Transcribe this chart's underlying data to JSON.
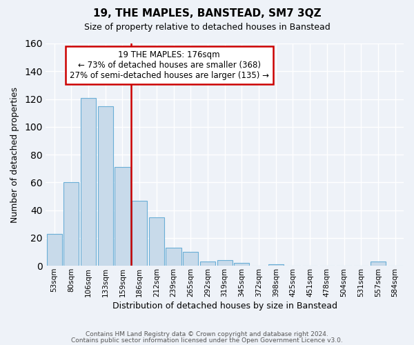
{
  "title": "19, THE MAPLES, BANSTEAD, SM7 3QZ",
  "subtitle": "Size of property relative to detached houses in Banstead",
  "xlabel": "Distribution of detached houses by size in Banstead",
  "ylabel": "Number of detached properties",
  "bar_labels": [
    "53sqm",
    "80sqm",
    "106sqm",
    "133sqm",
    "159sqm",
    "186sqm",
    "212sqm",
    "239sqm",
    "265sqm",
    "292sqm",
    "319sqm",
    "345sqm",
    "372sqm",
    "398sqm",
    "425sqm",
    "451sqm",
    "478sqm",
    "504sqm",
    "531sqm",
    "557sqm",
    "584sqm"
  ],
  "bar_values": [
    23,
    60,
    121,
    115,
    71,
    47,
    35,
    13,
    10,
    3,
    4,
    2,
    0,
    1,
    0,
    0,
    0,
    0,
    0,
    3,
    0
  ],
  "bar_color": "#c8daea",
  "bar_edge_color": "#6aaed6",
  "vline_color": "#cc0000",
  "vline_pos": 4.5,
  "ylim": [
    0,
    160
  ],
  "yticks": [
    0,
    20,
    40,
    60,
    80,
    100,
    120,
    140,
    160
  ],
  "annotation_title": "19 THE MAPLES: 176sqm",
  "annotation_line1": "← 73% of detached houses are smaller (368)",
  "annotation_line2": "27% of semi-detached houses are larger (135) →",
  "annotation_box_color": "#ffffff",
  "annotation_box_edge": "#cc0000",
  "footer_line1": "Contains HM Land Registry data © Crown copyright and database right 2024.",
  "footer_line2": "Contains public sector information licensed under the Open Government Licence v3.0.",
  "background_color": "#eef2f8",
  "grid_color": "#ffffff"
}
